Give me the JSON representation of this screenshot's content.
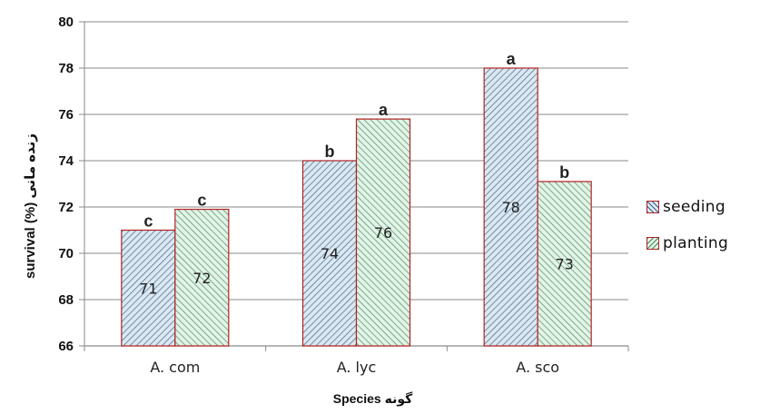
{
  "chart_data": {
    "type": "bar",
    "categories": [
      "A. com",
      "A. lyc",
      "A. sco"
    ],
    "series": [
      {
        "name": "seeding",
        "values": [
          71,
          74,
          78
        ],
        "value_labels": [
          "71",
          "74",
          "78"
        ],
        "letters": [
          "c",
          "b",
          "a"
        ],
        "fill": "#dbe8f2",
        "hatch": "#3a5f80"
      },
      {
        "name": "planting",
        "values": [
          71.9,
          75.8,
          73.1
        ],
        "value_labels": [
          "72",
          "76",
          "73"
        ],
        "letters": [
          "c",
          "a",
          "b"
        ],
        "fill": "#e3f3e7",
        "hatch": "#3c8a58"
      }
    ],
    "y_ticks": [
      "66",
      "68",
      "70",
      "72",
      "74",
      "76",
      "78",
      "80"
    ],
    "ylim": [
      66,
      80
    ],
    "ylabel": "survival (%) زنده مانی",
    "xlabel": "Species گونه",
    "grid": true,
    "legend": "right",
    "bar_border_color": "#b22222"
  }
}
